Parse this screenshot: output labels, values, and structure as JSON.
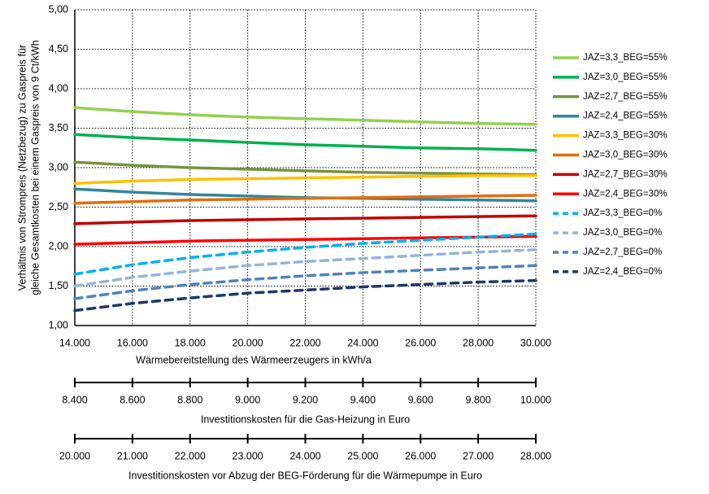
{
  "chart_data": {
    "type": "line",
    "ylabel": [
      "Verhältnis von Strompreis (Netzbezug) zu Gaspreis für",
      "gleiche Gesamtkosten bei einem Gaspreis von 9 Ct/kWh"
    ],
    "xlabel": "Wärmebereitstellung des Wärmeerzeugers in kWh/a",
    "x": [
      14000,
      16000,
      18000,
      20000,
      22000,
      24000,
      26000,
      28000,
      30000
    ],
    "xlim": [
      14000,
      30000
    ],
    "xticks": [
      {
        "value": 14000,
        "label": "14.000"
      },
      {
        "value": 16000,
        "label": "16.000"
      },
      {
        "value": 18000,
        "label": "18.000"
      },
      {
        "value": 20000,
        "label": "20.000"
      },
      {
        "value": 22000,
        "label": "22.000"
      },
      {
        "value": 24000,
        "label": "24.000"
      },
      {
        "value": 26000,
        "label": "26.000"
      },
      {
        "value": 28000,
        "label": "28.000"
      },
      {
        "value": 30000,
        "label": "30.000"
      }
    ],
    "ylim": [
      1,
      5
    ],
    "yticks": [
      {
        "value": 1,
        "label": "1,00"
      },
      {
        "value": 1.5,
        "label": "1,50"
      },
      {
        "value": 2,
        "label": "2,00"
      },
      {
        "value": 2.5,
        "label": "2,50"
      },
      {
        "value": 3,
        "label": "3,00"
      },
      {
        "value": 3.5,
        "label": "3,50"
      },
      {
        "value": 4,
        "label": "4,00"
      },
      {
        "value": 4.5,
        "label": "4,50"
      },
      {
        "value": 5,
        "label": "5,00"
      }
    ],
    "grid": true,
    "legend": "right",
    "secondary_axes": [
      {
        "label": "Investitionskosten für die Gas-Heizung in Euro",
        "lim": [
          8400,
          10000
        ],
        "ticks": [
          {
            "value": 8400,
            "label": "8.400"
          },
          {
            "value": 8600,
            "label": "8.600"
          },
          {
            "value": 8800,
            "label": "8.800"
          },
          {
            "value": 9000,
            "label": "9.000"
          },
          {
            "value": 9200,
            "label": "9.200"
          },
          {
            "value": 9400,
            "label": "9.400"
          },
          {
            "value": 9600,
            "label": "9.600"
          },
          {
            "value": 9800,
            "label": "9.800"
          },
          {
            "value": 10000,
            "label": "10.000"
          }
        ]
      },
      {
        "label": "Investitionskosten vor Abzug der BEG-Förderung für die Wärmepumpe in Euro",
        "lim": [
          20000,
          28000
        ],
        "ticks": [
          {
            "value": 20000,
            "label": "20.000"
          },
          {
            "value": 21000,
            "label": "21.000"
          },
          {
            "value": 22000,
            "label": "22.000"
          },
          {
            "value": 23000,
            "label": "23.000"
          },
          {
            "value": 24000,
            "label": "24.000"
          },
          {
            "value": 25000,
            "label": "25.000"
          },
          {
            "value": 26000,
            "label": "26.000"
          },
          {
            "value": 27000,
            "label": "27.000"
          },
          {
            "value": 28000,
            "label": "28.000"
          }
        ]
      }
    ],
    "series": [
      {
        "name": "JAZ=3,3_BEG=55%",
        "color": "#92d050",
        "dash": false,
        "values": [
          3.76,
          3.71,
          3.67,
          3.64,
          3.62,
          3.6,
          3.58,
          3.56,
          3.55
        ]
      },
      {
        "name": "JAZ=3,0_BEG=55%",
        "color": "#00b050",
        "dash": false,
        "values": [
          3.42,
          3.38,
          3.35,
          3.32,
          3.29,
          3.27,
          3.25,
          3.24,
          3.22
        ]
      },
      {
        "name": "JAZ=2,7_BEG=55%",
        "color": "#77933c",
        "dash": false,
        "values": [
          3.07,
          3.03,
          3.0,
          2.98,
          2.96,
          2.94,
          2.93,
          2.92,
          2.91
        ]
      },
      {
        "name": "JAZ=2,4_BEG=55%",
        "color": "#31859c",
        "dash": false,
        "values": [
          2.73,
          2.69,
          2.66,
          2.64,
          2.62,
          2.61,
          2.6,
          2.59,
          2.58
        ]
      },
      {
        "name": "JAZ=3,3_BEG=30%",
        "color": "#ffc000",
        "dash": false,
        "values": [
          2.8,
          2.83,
          2.85,
          2.86,
          2.87,
          2.88,
          2.89,
          2.9,
          2.9
        ]
      },
      {
        "name": "JAZ=3,0_BEG=30%",
        "color": "#e46c0a",
        "dash": false,
        "values": [
          2.55,
          2.57,
          2.59,
          2.6,
          2.61,
          2.62,
          2.63,
          2.64,
          2.65
        ]
      },
      {
        "name": "JAZ=2,7_BEG=30%",
        "color": "#c00000",
        "dash": false,
        "values": [
          2.29,
          2.31,
          2.33,
          2.34,
          2.35,
          2.36,
          2.37,
          2.38,
          2.39
        ]
      },
      {
        "name": "JAZ=2,4_BEG=30%",
        "color": "#ff0000",
        "dash": false,
        "values": [
          2.03,
          2.05,
          2.07,
          2.08,
          2.09,
          2.1,
          2.11,
          2.12,
          2.13
        ]
      },
      {
        "name": "JAZ=3,3_BEG=0%",
        "color": "#00b0f0",
        "dash": true,
        "values": [
          1.65,
          1.77,
          1.86,
          1.93,
          1.99,
          2.04,
          2.08,
          2.12,
          2.16
        ]
      },
      {
        "name": "JAZ=3,0_BEG=0%",
        "color": "#95b3d7",
        "dash": true,
        "values": [
          1.5,
          1.61,
          1.69,
          1.76,
          1.81,
          1.85,
          1.89,
          1.93,
          1.96
        ]
      },
      {
        "name": "JAZ=2,7_BEG=0%",
        "color": "#4f81bd",
        "dash": true,
        "values": [
          1.34,
          1.44,
          1.52,
          1.58,
          1.63,
          1.67,
          1.7,
          1.73,
          1.76
        ]
      },
      {
        "name": "JAZ=2,4_BEG=0%",
        "color": "#1f3864",
        "dash": true,
        "values": [
          1.19,
          1.28,
          1.35,
          1.41,
          1.45,
          1.49,
          1.52,
          1.55,
          1.57
        ]
      }
    ]
  }
}
